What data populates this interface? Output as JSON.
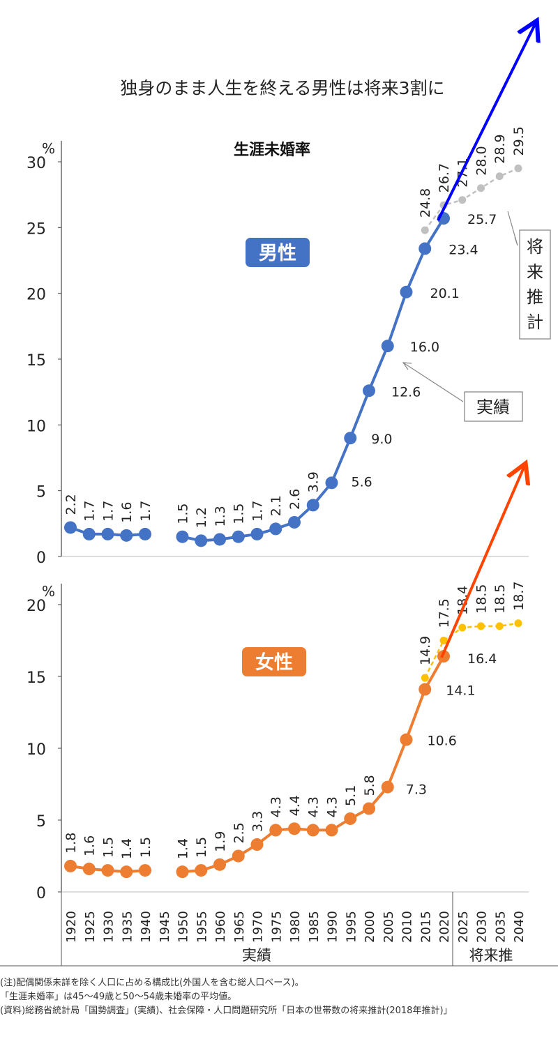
{
  "title": "独身のまま人生を終える男性は将来3割に",
  "subtitle": "生涯未婚率",
  "colors": {
    "male": "#4472C4",
    "male_projection": "#C0C0C0",
    "female": "#ED7D31",
    "female_projection": "#FFC000",
    "arrow_male": "#0000FF",
    "arrow_female": "#FF4400"
  },
  "legend": {
    "projection_vertical": [
      "将",
      "来",
      "推",
      "計"
    ],
    "actual": "実績"
  },
  "footer": {
    "actual": "実績",
    "projection": "将来推"
  },
  "notes": [
    "(注)配偶関係未詳を除く人口に占める構成比(外国人を含む総人口ベース)。",
    "「生涯未婚率」は45〜49歳と50〜54歳未婚率の平均値。",
    "(資料)総務省統計局「国勢調査」(実績)、社会保障・人口問題研究所「日本の世帯数の将来推計(2018年推計)」"
  ],
  "chart_data": [
    {
      "type": "line",
      "panel": "male",
      "label": "男性",
      "unit": "%",
      "ylim": [
        0,
        30
      ],
      "yticks": [
        0,
        5,
        10,
        15,
        20,
        25,
        30
      ],
      "x": [
        "1920",
        "1925",
        "1930",
        "1935",
        "1940",
        "1945",
        "1950",
        "1955",
        "1960",
        "1965",
        "1970",
        "1975",
        "1980",
        "1985",
        "1990",
        "1995",
        "2000",
        "2005",
        "2010",
        "2015",
        "2020",
        "2025",
        "2030",
        "2035",
        "2040"
      ],
      "series": [
        {
          "kind": "actual",
          "segments": [
            {
              "x": [
                "1920",
                "1925",
                "1930",
                "1935",
                "1940"
              ],
              "values": [
                2.2,
                1.7,
                1.7,
                1.6,
                1.7
              ]
            },
            {
              "x": [
                "1950",
                "1955",
                "1960",
                "1965",
                "1970",
                "1975",
                "1980",
                "1985",
                "1990",
                "1995",
                "2000",
                "2005",
                "2010",
                "2015",
                "2020"
              ],
              "values": [
                1.5,
                1.2,
                1.3,
                1.5,
                1.7,
                2.1,
                2.6,
                3.9,
                5.6,
                9.0,
                12.6,
                16.0,
                20.1,
                23.4,
                25.7
              ]
            }
          ]
        },
        {
          "kind": "projection",
          "segments": [
            {
              "x": [
                "2015",
                "2020",
                "2025",
                "2030",
                "2035",
                "2040"
              ],
              "values": [
                24.8,
                26.7,
                27.1,
                28.0,
                28.9,
                29.5
              ]
            }
          ]
        }
      ]
    },
    {
      "type": "line",
      "panel": "female",
      "label": "女性",
      "unit": "%",
      "ylim": [
        0,
        20
      ],
      "yticks": [
        0,
        5,
        10,
        15,
        20
      ],
      "x": [
        "1920",
        "1925",
        "1930",
        "1935",
        "1940",
        "1945",
        "1950",
        "1955",
        "1960",
        "1965",
        "1970",
        "1975",
        "1980",
        "1985",
        "1990",
        "1995",
        "2000",
        "2005",
        "2010",
        "2015",
        "2020",
        "2025",
        "2030",
        "2035",
        "2040"
      ],
      "series": [
        {
          "kind": "actual",
          "segments": [
            {
              "x": [
                "1920",
                "1925",
                "1930",
                "1935",
                "1940"
              ],
              "values": [
                1.8,
                1.6,
                1.5,
                1.4,
                1.5
              ]
            },
            {
              "x": [
                "1950",
                "1955",
                "1960",
                "1965",
                "1970",
                "1975",
                "1980",
                "1985",
                "1990",
                "1995",
                "2000",
                "2005",
                "2010",
                "2015",
                "2020"
              ],
              "values": [
                1.4,
                1.5,
                1.9,
                2.5,
                3.3,
                4.3,
                4.4,
                4.3,
                4.3,
                5.1,
                5.8,
                7.3,
                10.6,
                14.1,
                16.4
              ]
            }
          ]
        },
        {
          "kind": "projection",
          "segments": [
            {
              "x": [
                "2015",
                "2020",
                "2025",
                "2030",
                "2035",
                "2040"
              ],
              "values": [
                14.9,
                17.5,
                18.4,
                18.5,
                18.5,
                18.7
              ]
            }
          ]
        }
      ]
    }
  ]
}
